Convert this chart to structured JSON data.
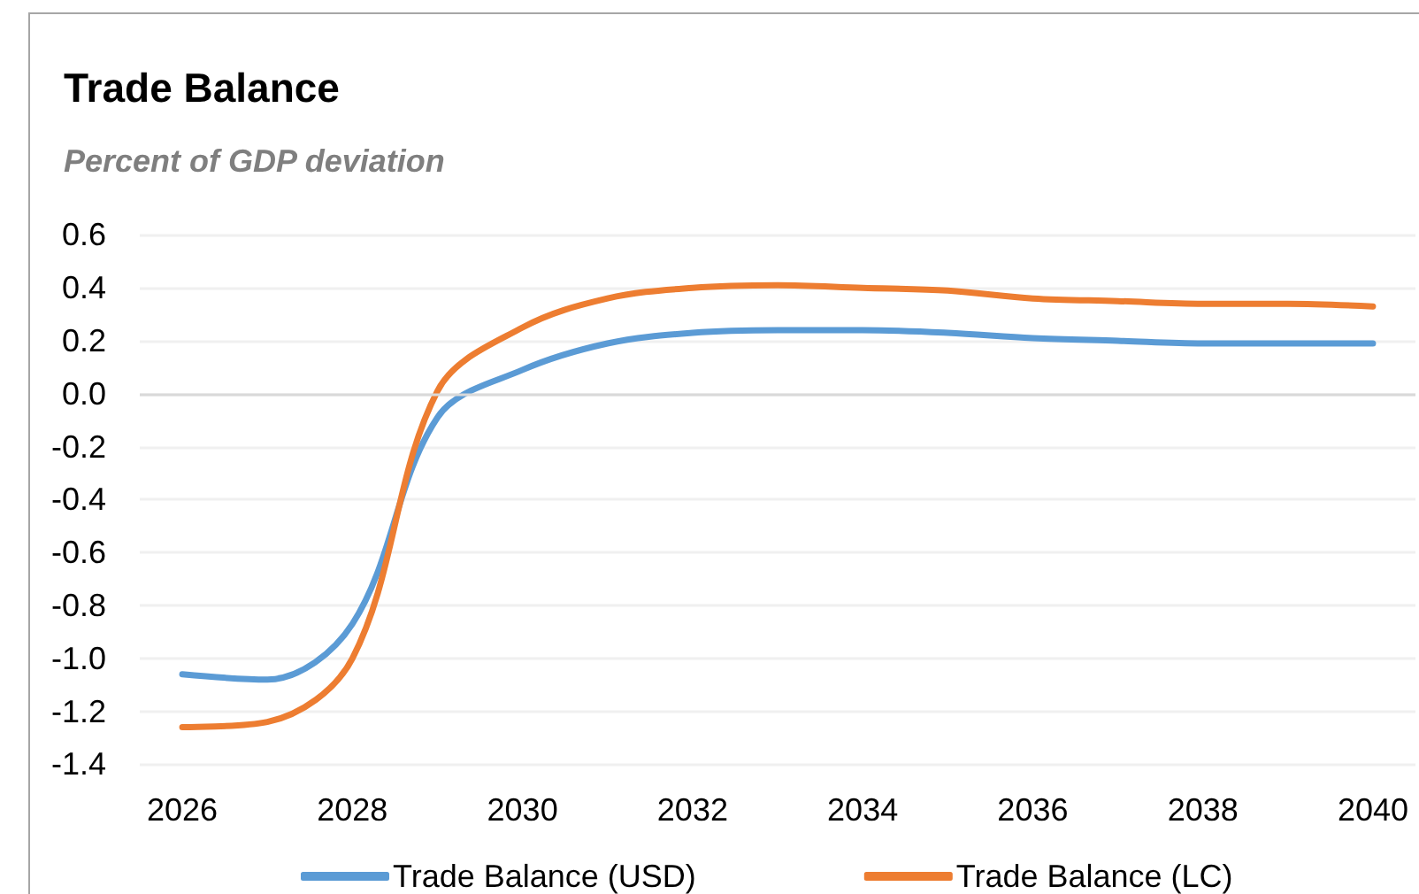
{
  "chart_data": {
    "type": "line",
    "title": "Trade Balance",
    "subtitle": "Percent of GDP deviation",
    "categories": [
      "2026",
      null,
      "2028",
      null,
      "2030",
      null,
      "2032",
      null,
      "2034",
      null,
      "2036",
      null,
      "2038",
      null,
      "2040"
    ],
    "series": [
      {
        "name": "Trade Balance (USD)",
        "color": "#5b9bd5",
        "values": [
          -1.06,
          -1.08,
          -0.87,
          -0.09,
          0.09,
          0.19,
          0.23,
          0.24,
          0.24,
          0.23,
          0.21,
          0.2,
          0.19,
          0.19,
          0.19
        ]
      },
      {
        "name": "Trade Balance (LC)",
        "color": "#ed7d31",
        "values": [
          -1.26,
          -1.24,
          -1.0,
          0.01,
          0.25,
          0.36,
          0.4,
          0.41,
          0.4,
          0.39,
          0.36,
          0.35,
          0.34,
          0.34,
          0.33
        ]
      }
    ],
    "ylim": [
      -1.4,
      0.6
    ],
    "yticks": [
      -1.4,
      -1.2,
      {
        "value": -1,
        "label": "-1.0"
      },
      -0.8,
      -0.6,
      -0.4,
      -0.2,
      {
        "value": 0,
        "label": "0.0"
      },
      0.2,
      0.4,
      0.6
    ],
    "grid": "y",
    "legend": "bottom",
    "marker": "none",
    "line_style": "solid",
    "ref_lines": [
      {
        "axis": "y",
        "value": 0,
        "color": "#d9d9d9"
      }
    ]
  }
}
